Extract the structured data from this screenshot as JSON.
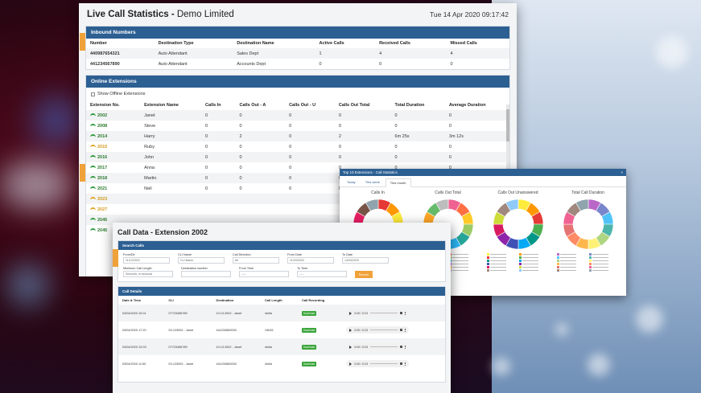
{
  "main": {
    "title": "Live Call Statistics",
    "title_sep": " - ",
    "company": "Demo Limited",
    "datetime": "Tue 14 Apr 2020 09:17:42"
  },
  "inbound": {
    "header": "Inbound Numbers",
    "columns": [
      "Number",
      "Destination Type",
      "Destination Name",
      "Active Calls",
      "Received Calls",
      "Missed Calls"
    ],
    "rows": [
      [
        "440987654321",
        "Auto Attendant",
        "Sales Dept",
        "1",
        "4",
        "4"
      ],
      [
        "441234567890",
        "Auto Attendant",
        "Accounts Dept",
        "0",
        "0",
        "0"
      ]
    ]
  },
  "online": {
    "header": "Online Extensions",
    "show_offline": "Show Offline Extensions",
    "columns": [
      "Extension No.",
      "Extension Name",
      "Calls In",
      "Calls Out - A",
      "Calls Out - U",
      "Calls Out Total",
      "Total Duration",
      "Average Duration"
    ],
    "rows": [
      {
        "ext": "2002",
        "name": "Janet",
        "in": "0",
        "outa": "0",
        "outu": "0",
        "total": "0",
        "dur": "0",
        "avg": "0",
        "status": "ok"
      },
      {
        "ext": "2008",
        "name": "Steve",
        "in": "0",
        "outa": "0",
        "outu": "0",
        "total": "0",
        "dur": "0",
        "avg": "0",
        "status": "ok"
      },
      {
        "ext": "2014",
        "name": "Harry",
        "in": "0",
        "outa": "2",
        "outu": "0",
        "total": "2",
        "dur": "6m 25s",
        "avg": "3m 12s",
        "status": "ok"
      },
      {
        "ext": "2015",
        "name": "Ruby",
        "in": "0",
        "outa": "0",
        "outu": "0",
        "total": "0",
        "dur": "0",
        "avg": "0",
        "status": "warn"
      },
      {
        "ext": "2016",
        "name": "John",
        "in": "0",
        "outa": "0",
        "outu": "0",
        "total": "0",
        "dur": "0",
        "avg": "0",
        "status": "ok"
      },
      {
        "ext": "2017",
        "name": "Anna",
        "in": "0",
        "outa": "0",
        "outu": "0",
        "total": "0",
        "dur": "0",
        "avg": "0",
        "status": "ok"
      },
      {
        "ext": "2018",
        "name": "Martin",
        "in": "0",
        "outa": "0",
        "outu": "0",
        "total": "0",
        "dur": "0",
        "avg": "0",
        "status": "ok"
      },
      {
        "ext": "2021",
        "name": "Neil",
        "in": "0",
        "outa": "0",
        "outu": "0",
        "total": "0",
        "dur": "0",
        "avg": "0",
        "status": "ok"
      }
    ],
    "partial_exts": [
      {
        "ext": "2023",
        "status": "warn"
      },
      {
        "ext": "2027",
        "status": "warn"
      },
      {
        "ext": "2045",
        "status": "ok"
      },
      {
        "ext": "2045",
        "status": "ok"
      }
    ]
  },
  "top10": {
    "header": "Top 10 Extensions - Call Statistics",
    "tabs": [
      "Today",
      "This week",
      "This month"
    ],
    "charts": [
      {
        "title": "Calls In",
        "colors": [
          "#e53935",
          "#ff9800",
          "#ffeb3b",
          "#8bc34a",
          "#4caf50",
          "#00bcd4",
          "#2196f3",
          "#3f51b5",
          "#9c27b0",
          "#e91e63",
          "#795548",
          "#90a4ae"
        ]
      },
      {
        "title": "Calls Out Total",
        "colors": [
          "#f06292",
          "#ff7043",
          "#ffca28",
          "#9ccc65",
          "#26a69a",
          "#29b6f6",
          "#5c6bc0",
          "#ab47bc",
          "#ec407a",
          "#ffa726",
          "#66bb6a",
          "#bdbdbd"
        ]
      },
      {
        "title": "Calls Out Unanswered",
        "colors": [
          "#ffeb3b",
          "#ff9800",
          "#e53935",
          "#4caf50",
          "#009688",
          "#03a9f4",
          "#3f51b5",
          "#8e24aa",
          "#d81b60",
          "#cddc39",
          "#a1887f",
          "#90caf9"
        ]
      },
      {
        "title": "Total Call Duration",
        "colors": [
          "#ba68c8",
          "#7986cb",
          "#4fc3f7",
          "#4db6ac",
          "#aed581",
          "#fff176",
          "#ffb74d",
          "#ff8a65",
          "#e57373",
          "#f06292",
          "#a1887f",
          "#90a4ae"
        ]
      }
    ]
  },
  "calldata": {
    "title": "Call Data - Extension 2002",
    "search_header": "Search Calls",
    "fields": [
      {
        "label": "From/Dir",
        "value": "11/12/2022"
      },
      {
        "label": "CLI Name",
        "value": "CLI Name"
      },
      {
        "label": "Call Direction",
        "value": "All"
      },
      {
        "label": "From Date",
        "value": "11/03/2020"
      },
      {
        "label": "To Date",
        "value": "14/04/2020"
      },
      {
        "label": "Minimum Call Length",
        "value": "Seconds, in seconds"
      },
      {
        "label": "Destination number",
        "value": ""
      },
      {
        "label": "From Time",
        "value": "--:--"
      },
      {
        "label": "To Time",
        "value": "--:--"
      }
    ],
    "search_btn": "Search",
    "details_header": "Call Details",
    "columns": [
      "Date & Time",
      "CLI",
      "Destination",
      "Call Length",
      "Call Recording"
    ],
    "rows": [
      {
        "dt": "03/04/2020 10:01",
        "cli": "07723456789",
        "dest": "10.13.2002 - Janet",
        "len": "4m6s",
        "rec": "Download",
        "time": "0:00 / 0:23"
      },
      {
        "dt": "03/04/2020 17:20",
        "cli": "03-123092 - Janet",
        "dest": "441234560000",
        "len": "19h26",
        "rec": "Download",
        "time": "0:00 / 0:23"
      },
      {
        "dt": "03/04/2020 12:03",
        "cli": "07723456789",
        "dest": "10.13.2002 - Janet",
        "len": "4m6s",
        "rec": "Download",
        "time": "0:00 / 0:23"
      },
      {
        "dt": "03/04/2020 11:50",
        "cli": "03-123092 - Janet",
        "dest": "441234560000",
        "len": "4m6s",
        "rec": "Download",
        "time": "0:00 / 0:23"
      }
    ]
  }
}
